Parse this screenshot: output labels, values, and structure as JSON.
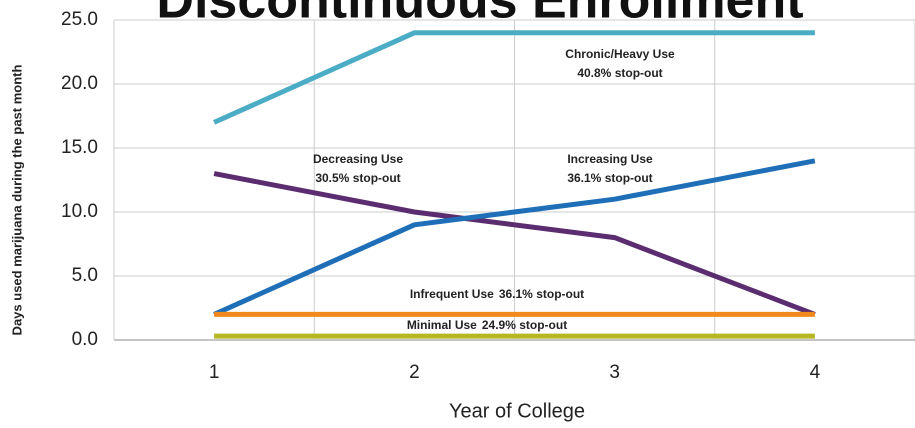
{
  "chart_data": {
    "type": "line",
    "title": "Discontinuous Enrollment",
    "x_label": "Year of College",
    "y_label": "Days used marijuana during the past month",
    "categories": [
      "1",
      "2",
      "3",
      "4"
    ],
    "ylim": [
      0,
      25
    ],
    "yticks": [
      {
        "value": 0,
        "label": "0.0"
      },
      {
        "value": 5,
        "label": "5.0"
      },
      {
        "value": 10,
        "label": "10.0"
      },
      {
        "value": 15,
        "label": "15.0"
      },
      {
        "value": 20,
        "label": "20.0"
      },
      {
        "value": 25,
        "label": "25.0"
      }
    ],
    "grid": true,
    "series": [
      {
        "name": "Chronic/Heavy Use",
        "note": "40.8% stop-out",
        "color": "#4bacc6",
        "values": [
          17,
          24,
          24,
          24
        ]
      },
      {
        "name": "Decreasing Use",
        "note": "30.5% stop-out",
        "color": "#5b2c6f",
        "values": [
          13,
          10,
          8,
          2
        ]
      },
      {
        "name": "Increasing Use",
        "note": "36.1% stop-out",
        "color": "#1f6fb8",
        "values": [
          2,
          9,
          11,
          14
        ]
      },
      {
        "name": "Infrequent Use",
        "note": "36.1% stop-out",
        "color": "#f08a1c",
        "values": [
          2,
          2,
          2,
          2
        ]
      },
      {
        "name": "Minimal Use",
        "note": "24.9% stop-out",
        "color": "#b5b820",
        "values": [
          0.3,
          0.3,
          0.3,
          0.3
        ]
      }
    ]
  }
}
